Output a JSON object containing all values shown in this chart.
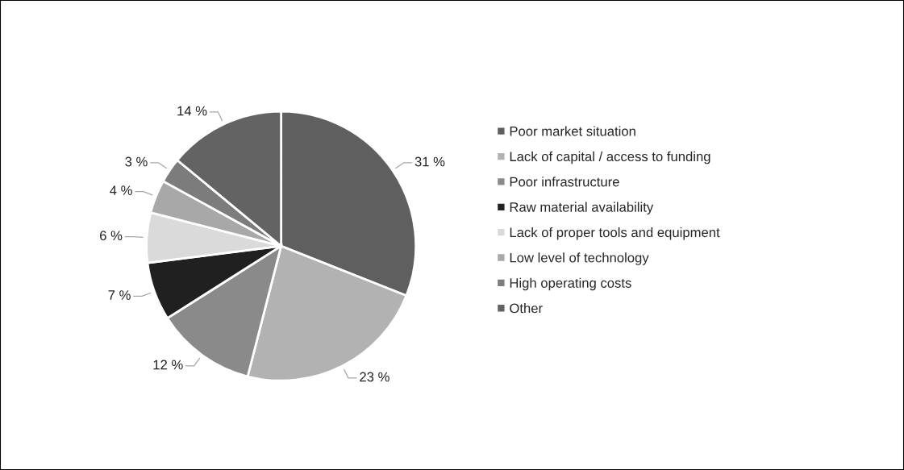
{
  "chart_data": {
    "type": "pie",
    "categories": [
      "Poor market situation",
      "Lack of capital / access to funding",
      "Poor infrastructure",
      "Raw material availability",
      "Lack of proper tools and equipment",
      "Low level of technology",
      "High operating costs",
      "Other"
    ],
    "values": [
      31,
      23,
      12,
      7,
      6,
      4,
      3,
      14
    ],
    "colors": [
      "#5f5f5f",
      "#b2b2b2",
      "#8a8a8a",
      "#202020",
      "#dadada",
      "#a8a8a8",
      "#7c7c7c",
      "#636363"
    ],
    "value_labels": [
      "31 %",
      "23 %",
      "12 %",
      "7 %",
      "6 %",
      "4 %",
      "3 %",
      "14 %"
    ],
    "legend": "right"
  }
}
